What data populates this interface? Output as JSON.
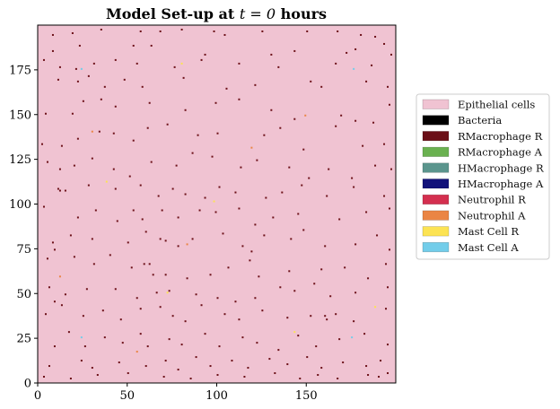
{
  "chart_data": {
    "type": "heatmap",
    "title": "Model Set-up at",
    "title_math": "t = 0",
    "title_suffix": "hours",
    "xlabel": "",
    "ylabel": "",
    "xlim": [
      0,
      200
    ],
    "ylim": [
      0,
      200
    ],
    "x_ticks": [
      0,
      50,
      100,
      150
    ],
    "y_ticks": [
      0,
      25,
      50,
      75,
      100,
      125,
      150,
      175
    ],
    "background_cell_type": "Epithelial cells",
    "legend": [
      {
        "label": "Epithelial cells",
        "color": "#f0c3d2"
      },
      {
        "label": "Bacteria",
        "color": "#000000"
      },
      {
        "label": "RMacrophage R",
        "color": "#6b0f17"
      },
      {
        "label": "RMacrophage A",
        "color": "#6ab150"
      },
      {
        "label": "HMacrophage R",
        "color": "#5b958d"
      },
      {
        "label": "HMacrophage A",
        "color": "#12127a"
      },
      {
        "label": "Neutrophil R",
        "color": "#d42f4f"
      },
      {
        "label": "Neutrophil A",
        "color": "#ea8544"
      },
      {
        "label": "Mast Cell R",
        "color": "#fce353"
      },
      {
        "label": "Mast Cell A",
        "color": "#72cdea"
      }
    ],
    "legend_position": "right",
    "cells": [
      {
        "type": "RMacrophage R",
        "points": [
          [
            8,
            194
          ],
          [
            19,
            195
          ],
          [
            35,
            197
          ],
          [
            57,
            196
          ],
          [
            68,
            196
          ],
          [
            80,
            197
          ],
          [
            98,
            196
          ],
          [
            104,
            194
          ],
          [
            125,
            196
          ],
          [
            150,
            196
          ],
          [
            167,
            196
          ],
          [
            180,
            194
          ],
          [
            8,
            185
          ],
          [
            23,
            188
          ],
          [
            53,
            188
          ],
          [
            63,
            188
          ],
          [
            93,
            183
          ],
          [
            130,
            183
          ],
          [
            143,
            185
          ],
          [
            172,
            184
          ],
          [
            177,
            186
          ],
          [
            188,
            193
          ],
          [
            193,
            189
          ],
          [
            197,
            183
          ],
          [
            3,
            180
          ],
          [
            12,
            176
          ],
          [
            21,
            175
          ],
          [
            31,
            178
          ],
          [
            43,
            180
          ],
          [
            55,
            178
          ],
          [
            76,
            176
          ],
          [
            91,
            180
          ],
          [
            112,
            178
          ],
          [
            134,
            176
          ],
          [
            166,
            178
          ],
          [
            186,
            177
          ],
          [
            11,
            169
          ],
          [
            22,
            168
          ],
          [
            28,
            171
          ],
          [
            37,
            165
          ],
          [
            48,
            169
          ],
          [
            58,
            165
          ],
          [
            81,
            170
          ],
          [
            105,
            164
          ],
          [
            121,
            166
          ],
          [
            152,
            168
          ],
          [
            158,
            165
          ],
          [
            183,
            168
          ],
          [
            195,
            165
          ],
          [
            4,
            150
          ],
          [
            19,
            150
          ],
          [
            25,
            157
          ],
          [
            35,
            158
          ],
          [
            43,
            154
          ],
          [
            62,
            156
          ],
          [
            82,
            152
          ],
          [
            99,
            156
          ],
          [
            112,
            158
          ],
          [
            130,
            152
          ],
          [
            143,
            147
          ],
          [
            169,
            149
          ],
          [
            177,
            146
          ],
          [
            187,
            145
          ],
          [
            196,
            155
          ],
          [
            2,
            133
          ],
          [
            13,
            132
          ],
          [
            22,
            136
          ],
          [
            34,
            140
          ],
          [
            42,
            139
          ],
          [
            53,
            135
          ],
          [
            61,
            142
          ],
          [
            72,
            144
          ],
          [
            89,
            138
          ],
          [
            100,
            139
          ],
          [
            126,
            138
          ],
          [
            135,
            142
          ],
          [
            148,
            130
          ],
          [
            166,
            143
          ],
          [
            181,
            132
          ],
          [
            193,
            133
          ],
          [
            5,
            123
          ],
          [
            12,
            119
          ],
          [
            20,
            121
          ],
          [
            30,
            125
          ],
          [
            42,
            119
          ],
          [
            51,
            115
          ],
          [
            63,
            123
          ],
          [
            77,
            121
          ],
          [
            86,
            128
          ],
          [
            97,
            126
          ],
          [
            113,
            120
          ],
          [
            122,
            124
          ],
          [
            140,
            120
          ],
          [
            151,
            114
          ],
          [
            162,
            119
          ],
          [
            175,
            114
          ],
          [
            188,
            121
          ],
          [
            197,
            119
          ],
          [
            11,
            108
          ],
          [
            12,
            107
          ],
          [
            15,
            107
          ],
          [
            28,
            110
          ],
          [
            43,
            108
          ],
          [
            57,
            110
          ],
          [
            67,
            104
          ],
          [
            75,
            108
          ],
          [
            82,
            105
          ],
          [
            93,
            103
          ],
          [
            101,
            109
          ],
          [
            110,
            106
          ],
          [
            127,
            103
          ],
          [
            136,
            106
          ],
          [
            147,
            110
          ],
          [
            161,
            104
          ],
          [
            176,
            109
          ],
          [
            193,
            104
          ],
          [
            3,
            98
          ],
          [
            22,
            92
          ],
          [
            32,
            96
          ],
          [
            44,
            90
          ],
          [
            53,
            96
          ],
          [
            58,
            91
          ],
          [
            69,
            96
          ],
          [
            78,
            92
          ],
          [
            90,
            96
          ],
          [
            99,
            95
          ],
          [
            112,
            97
          ],
          [
            121,
            88
          ],
          [
            131,
            92
          ],
          [
            145,
            94
          ],
          [
            168,
            91
          ],
          [
            183,
            95
          ],
          [
            196,
            97
          ],
          [
            8,
            78
          ],
          [
            9,
            74
          ],
          [
            18,
            82
          ],
          [
            30,
            80
          ],
          [
            50,
            78
          ],
          [
            60,
            84
          ],
          [
            68,
            80
          ],
          [
            71,
            79
          ],
          [
            78,
            76
          ],
          [
            86,
            80
          ],
          [
            103,
            83
          ],
          [
            114,
            76
          ],
          [
            119,
            73
          ],
          [
            126,
            82
          ],
          [
            141,
            80
          ],
          [
            148,
            85
          ],
          [
            160,
            76
          ],
          [
            177,
            77
          ],
          [
            189,
            82
          ],
          [
            196,
            74
          ],
          [
            5,
            69
          ],
          [
            20,
            70
          ],
          [
            31,
            66
          ],
          [
            40,
            71
          ],
          [
            52,
            64
          ],
          [
            59,
            66
          ],
          [
            62,
            66
          ],
          [
            64,
            60
          ],
          [
            71,
            60
          ],
          [
            83,
            58
          ],
          [
            96,
            60
          ],
          [
            106,
            64
          ],
          [
            118,
            68
          ],
          [
            123,
            59
          ],
          [
            140,
            62
          ],
          [
            158,
            63
          ],
          [
            171,
            64
          ],
          [
            184,
            58
          ],
          [
            194,
            66
          ],
          [
            6,
            53
          ],
          [
            9,
            45
          ],
          [
            15,
            49
          ],
          [
            27,
            52
          ],
          [
            43,
            52
          ],
          [
            55,
            47
          ],
          [
            66,
            50
          ],
          [
            73,
            51
          ],
          [
            88,
            49
          ],
          [
            100,
            47
          ],
          [
            110,
            45
          ],
          [
            121,
            47
          ],
          [
            135,
            53
          ],
          [
            143,
            51
          ],
          [
            154,
            55
          ],
          [
            163,
            48
          ],
          [
            177,
            50
          ],
          [
            195,
            53
          ],
          [
            4,
            38
          ],
          [
            13,
            43
          ],
          [
            25,
            37
          ],
          [
            36,
            40
          ],
          [
            46,
            35
          ],
          [
            57,
            41
          ],
          [
            68,
            42
          ],
          [
            75,
            37
          ],
          [
            82,
            34
          ],
          [
            91,
            43
          ],
          [
            104,
            38
          ],
          [
            112,
            35
          ],
          [
            125,
            40
          ],
          [
            139,
            36
          ],
          [
            152,
            37
          ],
          [
            160,
            37
          ],
          [
            161,
            35
          ],
          [
            166,
            38
          ],
          [
            176,
            34
          ],
          [
            194,
            41
          ],
          [
            9,
            20
          ],
          [
            17,
            28
          ],
          [
            26,
            20
          ],
          [
            37,
            25
          ],
          [
            47,
            22
          ],
          [
            57,
            27
          ],
          [
            61,
            20
          ],
          [
            73,
            24
          ],
          [
            80,
            21
          ],
          [
            93,
            27
          ],
          [
            101,
            20
          ],
          [
            114,
            25
          ],
          [
            122,
            22
          ],
          [
            134,
            18
          ],
          [
            145,
            26
          ],
          [
            155,
            20
          ],
          [
            168,
            24
          ],
          [
            182,
            27
          ],
          [
            195,
            21
          ],
          [
            6,
            9
          ],
          [
            24,
            12
          ],
          [
            30,
            8
          ],
          [
            45,
            11
          ],
          [
            60,
            9
          ],
          [
            71,
            12
          ],
          [
            78,
            7
          ],
          [
            88,
            14
          ],
          [
            96,
            9
          ],
          [
            108,
            12
          ],
          [
            117,
            8
          ],
          [
            129,
            13
          ],
          [
            139,
            10
          ],
          [
            150,
            14
          ],
          [
            158,
            8
          ],
          [
            170,
            11
          ],
          [
            183,
            9
          ],
          [
            191,
            12
          ],
          [
            3,
            3
          ],
          [
            18,
            2
          ],
          [
            33,
            4
          ],
          [
            50,
            5
          ],
          [
            70,
            3
          ],
          [
            85,
            2
          ],
          [
            100,
            4
          ],
          [
            115,
            3
          ],
          [
            132,
            5
          ],
          [
            146,
            2
          ],
          [
            156,
            4
          ],
          [
            167,
            2
          ],
          [
            184,
            4
          ],
          [
            190,
            3
          ],
          [
            195,
            5
          ]
        ]
      },
      {
        "type": "Mast Cell A",
        "points": [
          [
            24,
            175
          ],
          [
            176,
            175
          ],
          [
            24,
            25
          ],
          [
            175,
            25
          ]
        ]
      },
      {
        "type": "Mast Cell R",
        "points": [
          [
            80,
            178
          ],
          [
            72,
            50
          ],
          [
            188,
            42
          ],
          [
            143,
            28
          ],
          [
            38,
            112
          ],
          [
            98,
            101
          ]
        ]
      },
      {
        "type": "Neutrophil A",
        "points": [
          [
            30,
            140
          ],
          [
            119,
            131
          ],
          [
            55,
            17
          ],
          [
            149,
            149
          ],
          [
            83,
            77
          ],
          [
            12,
            59
          ]
        ]
      }
    ]
  }
}
